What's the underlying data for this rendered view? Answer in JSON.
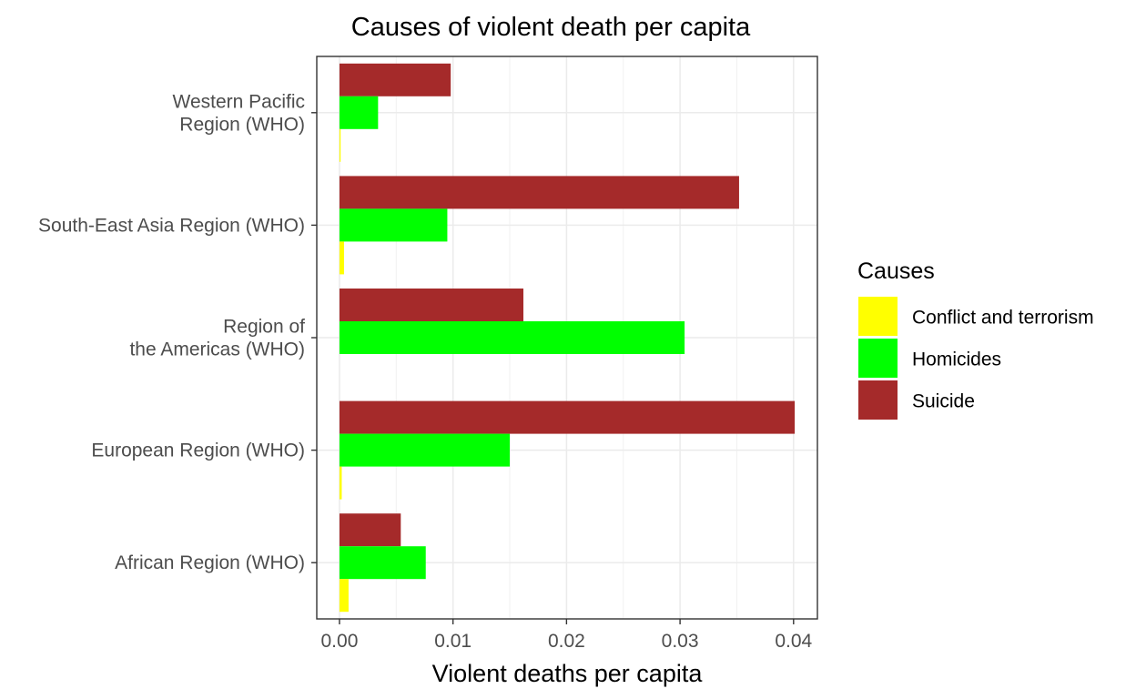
{
  "chart_data": {
    "type": "bar",
    "orientation": "horizontal",
    "title": "Causes of violent death per capita",
    "xlabel": "Violent deaths per capita",
    "ylabel": "",
    "xlim": [
      -0.002,
      0.0421
    ],
    "x_ticks": [
      0.0,
      0.01,
      0.02,
      0.03,
      0.04
    ],
    "x_tick_labels": [
      "0.00",
      "0.01",
      "0.02",
      "0.03",
      "0.04"
    ],
    "grid": true,
    "categories": [
      [
        "Western Pacific",
        "Region (WHO)"
      ],
      [
        "South-East Asia Region (WHO)"
      ],
      [
        "Region of",
        "the Americas (WHO)"
      ],
      [
        "European Region (WHO)"
      ],
      [
        "African Region (WHO)"
      ]
    ],
    "series": [
      {
        "name": "Suicide",
        "color": "#A52A2A",
        "values": [
          0.0098,
          0.0352,
          0.0162,
          0.0401,
          0.0054
        ]
      },
      {
        "name": "Homicides",
        "color": "#00FF00",
        "values": [
          0.0034,
          0.0095,
          0.0304,
          0.015,
          0.0076
        ]
      },
      {
        "name": "Conflict and terrorism",
        "color": "#FFFF00",
        "values": [
          0.0001,
          0.0004,
          0.0,
          0.0002,
          0.0008
        ]
      }
    ],
    "legend": {
      "title": "Causes",
      "placement": "right",
      "items": [
        {
          "name": "Conflict and terrorism",
          "color": "#FFFF00"
        },
        {
          "name": "Homicides",
          "color": "#00FF00"
        },
        {
          "name": "Suicide",
          "color": "#A52A2A"
        }
      ]
    }
  }
}
